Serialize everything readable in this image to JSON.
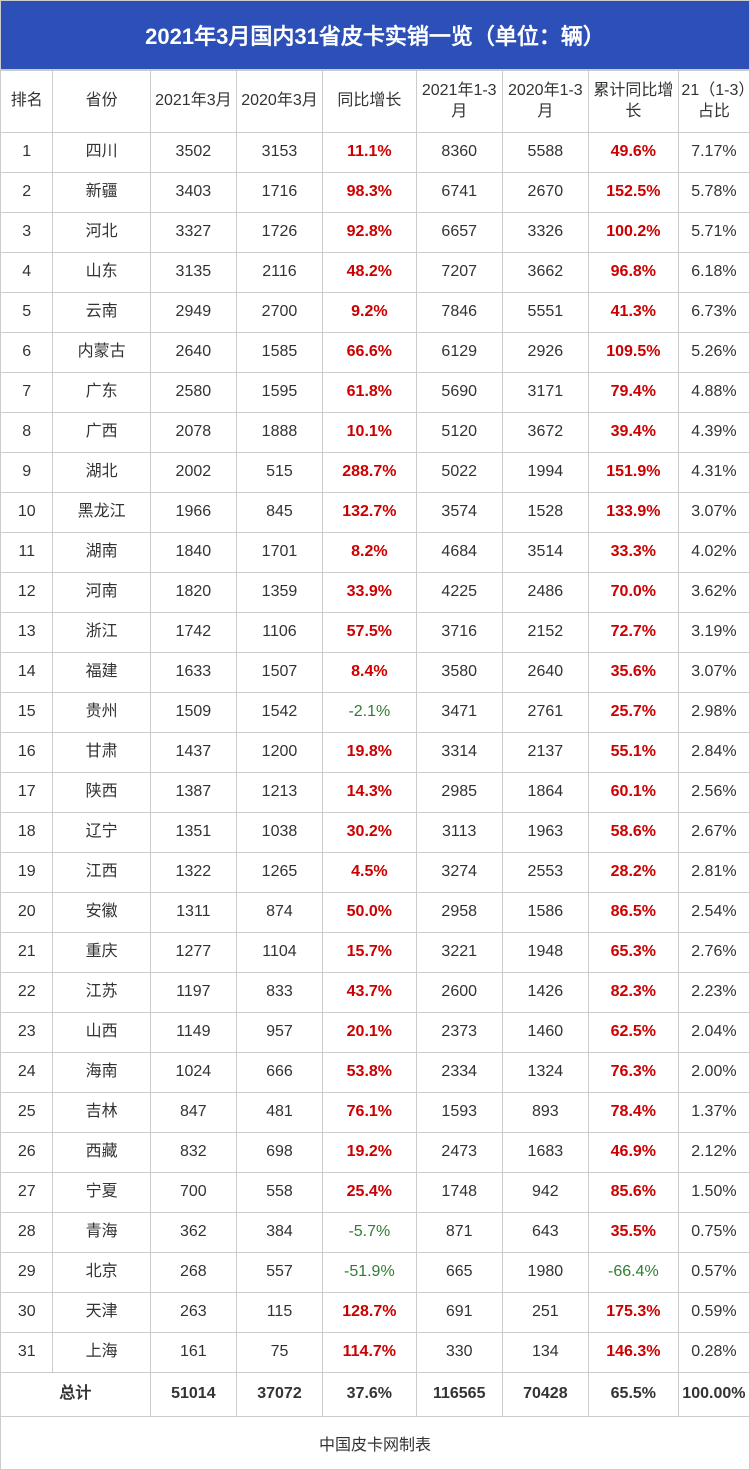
{
  "title": "2021年3月国内31省皮卡实销一览（单位：辆）",
  "footer": "中国皮卡网制表",
  "colors": {
    "header_bg": "#2c4fb8",
    "header_text": "#ffffff",
    "border": "#cccccc",
    "positive": "#cc0000",
    "negative": "#2e7d32",
    "text": "#333333"
  },
  "columns": [
    "排名",
    "省份",
    "2021年3月",
    "2020年3月",
    "同比增长",
    "2021年1-3月",
    "2020年1-3月",
    "累计同比增长",
    "21（1-3）占比"
  ],
  "rows": [
    {
      "rank": "1",
      "prov": "四川",
      "m21": "3502",
      "m20": "3153",
      "yoy": "11.1%",
      "yoy_sign": 1,
      "c21": "8360",
      "c20": "5588",
      "cum": "49.6%",
      "cum_sign": 1,
      "share": "7.17%"
    },
    {
      "rank": "2",
      "prov": "新疆",
      "m21": "3403",
      "m20": "1716",
      "yoy": "98.3%",
      "yoy_sign": 1,
      "c21": "6741",
      "c20": "2670",
      "cum": "152.5%",
      "cum_sign": 1,
      "share": "5.78%"
    },
    {
      "rank": "3",
      "prov": "河北",
      "m21": "3327",
      "m20": "1726",
      "yoy": "92.8%",
      "yoy_sign": 1,
      "c21": "6657",
      "c20": "3326",
      "cum": "100.2%",
      "cum_sign": 1,
      "share": "5.71%"
    },
    {
      "rank": "4",
      "prov": "山东",
      "m21": "3135",
      "m20": "2116",
      "yoy": "48.2%",
      "yoy_sign": 1,
      "c21": "7207",
      "c20": "3662",
      "cum": "96.8%",
      "cum_sign": 1,
      "share": "6.18%"
    },
    {
      "rank": "5",
      "prov": "云南",
      "m21": "2949",
      "m20": "2700",
      "yoy": "9.2%",
      "yoy_sign": 1,
      "c21": "7846",
      "c20": "5551",
      "cum": "41.3%",
      "cum_sign": 1,
      "share": "6.73%"
    },
    {
      "rank": "6",
      "prov": "内蒙古",
      "m21": "2640",
      "m20": "1585",
      "yoy": "66.6%",
      "yoy_sign": 1,
      "c21": "6129",
      "c20": "2926",
      "cum": "109.5%",
      "cum_sign": 1,
      "share": "5.26%"
    },
    {
      "rank": "7",
      "prov": "广东",
      "m21": "2580",
      "m20": "1595",
      "yoy": "61.8%",
      "yoy_sign": 1,
      "c21": "5690",
      "c20": "3171",
      "cum": "79.4%",
      "cum_sign": 1,
      "share": "4.88%"
    },
    {
      "rank": "8",
      "prov": "广西",
      "m21": "2078",
      "m20": "1888",
      "yoy": "10.1%",
      "yoy_sign": 1,
      "c21": "5120",
      "c20": "3672",
      "cum": "39.4%",
      "cum_sign": 1,
      "share": "4.39%"
    },
    {
      "rank": "9",
      "prov": "湖北",
      "m21": "2002",
      "m20": "515",
      "yoy": "288.7%",
      "yoy_sign": 1,
      "c21": "5022",
      "c20": "1994",
      "cum": "151.9%",
      "cum_sign": 1,
      "share": "4.31%"
    },
    {
      "rank": "10",
      "prov": "黑龙江",
      "m21": "1966",
      "m20": "845",
      "yoy": "132.7%",
      "yoy_sign": 1,
      "c21": "3574",
      "c20": "1528",
      "cum": "133.9%",
      "cum_sign": 1,
      "share": "3.07%"
    },
    {
      "rank": "11",
      "prov": "湖南",
      "m21": "1840",
      "m20": "1701",
      "yoy": "8.2%",
      "yoy_sign": 1,
      "c21": "4684",
      "c20": "3514",
      "cum": "33.3%",
      "cum_sign": 1,
      "share": "4.02%"
    },
    {
      "rank": "12",
      "prov": "河南",
      "m21": "1820",
      "m20": "1359",
      "yoy": "33.9%",
      "yoy_sign": 1,
      "c21": "4225",
      "c20": "2486",
      "cum": "70.0%",
      "cum_sign": 1,
      "share": "3.62%"
    },
    {
      "rank": "13",
      "prov": "浙江",
      "m21": "1742",
      "m20": "1106",
      "yoy": "57.5%",
      "yoy_sign": 1,
      "c21": "3716",
      "c20": "2152",
      "cum": "72.7%",
      "cum_sign": 1,
      "share": "3.19%"
    },
    {
      "rank": "14",
      "prov": "福建",
      "m21": "1633",
      "m20": "1507",
      "yoy": "8.4%",
      "yoy_sign": 1,
      "c21": "3580",
      "c20": "2640",
      "cum": "35.6%",
      "cum_sign": 1,
      "share": "3.07%"
    },
    {
      "rank": "15",
      "prov": "贵州",
      "m21": "1509",
      "m20": "1542",
      "yoy": "-2.1%",
      "yoy_sign": -1,
      "c21": "3471",
      "c20": "2761",
      "cum": "25.7%",
      "cum_sign": 1,
      "share": "2.98%"
    },
    {
      "rank": "16",
      "prov": "甘肃",
      "m21": "1437",
      "m20": "1200",
      "yoy": "19.8%",
      "yoy_sign": 1,
      "c21": "3314",
      "c20": "2137",
      "cum": "55.1%",
      "cum_sign": 1,
      "share": "2.84%"
    },
    {
      "rank": "17",
      "prov": "陕西",
      "m21": "1387",
      "m20": "1213",
      "yoy": "14.3%",
      "yoy_sign": 1,
      "c21": "2985",
      "c20": "1864",
      "cum": "60.1%",
      "cum_sign": 1,
      "share": "2.56%"
    },
    {
      "rank": "18",
      "prov": "辽宁",
      "m21": "1351",
      "m20": "1038",
      "yoy": "30.2%",
      "yoy_sign": 1,
      "c21": "3113",
      "c20": "1963",
      "cum": "58.6%",
      "cum_sign": 1,
      "share": "2.67%"
    },
    {
      "rank": "19",
      "prov": "江西",
      "m21": "1322",
      "m20": "1265",
      "yoy": "4.5%",
      "yoy_sign": 1,
      "c21": "3274",
      "c20": "2553",
      "cum": "28.2%",
      "cum_sign": 1,
      "share": "2.81%"
    },
    {
      "rank": "20",
      "prov": "安徽",
      "m21": "1311",
      "m20": "874",
      "yoy": "50.0%",
      "yoy_sign": 1,
      "c21": "2958",
      "c20": "1586",
      "cum": "86.5%",
      "cum_sign": 1,
      "share": "2.54%"
    },
    {
      "rank": "21",
      "prov": "重庆",
      "m21": "1277",
      "m20": "1104",
      "yoy": "15.7%",
      "yoy_sign": 1,
      "c21": "3221",
      "c20": "1948",
      "cum": "65.3%",
      "cum_sign": 1,
      "share": "2.76%"
    },
    {
      "rank": "22",
      "prov": "江苏",
      "m21": "1197",
      "m20": "833",
      "yoy": "43.7%",
      "yoy_sign": 1,
      "c21": "2600",
      "c20": "1426",
      "cum": "82.3%",
      "cum_sign": 1,
      "share": "2.23%"
    },
    {
      "rank": "23",
      "prov": "山西",
      "m21": "1149",
      "m20": "957",
      "yoy": "20.1%",
      "yoy_sign": 1,
      "c21": "2373",
      "c20": "1460",
      "cum": "62.5%",
      "cum_sign": 1,
      "share": "2.04%"
    },
    {
      "rank": "24",
      "prov": "海南",
      "m21": "1024",
      "m20": "666",
      "yoy": "53.8%",
      "yoy_sign": 1,
      "c21": "2334",
      "c20": "1324",
      "cum": "76.3%",
      "cum_sign": 1,
      "share": "2.00%"
    },
    {
      "rank": "25",
      "prov": "吉林",
      "m21": "847",
      "m20": "481",
      "yoy": "76.1%",
      "yoy_sign": 1,
      "c21": "1593",
      "c20": "893",
      "cum": "78.4%",
      "cum_sign": 1,
      "share": "1.37%"
    },
    {
      "rank": "26",
      "prov": "西藏",
      "m21": "832",
      "m20": "698",
      "yoy": "19.2%",
      "yoy_sign": 1,
      "c21": "2473",
      "c20": "1683",
      "cum": "46.9%",
      "cum_sign": 1,
      "share": "2.12%"
    },
    {
      "rank": "27",
      "prov": "宁夏",
      "m21": "700",
      "m20": "558",
      "yoy": "25.4%",
      "yoy_sign": 1,
      "c21": "1748",
      "c20": "942",
      "cum": "85.6%",
      "cum_sign": 1,
      "share": "1.50%"
    },
    {
      "rank": "28",
      "prov": "青海",
      "m21": "362",
      "m20": "384",
      "yoy": "-5.7%",
      "yoy_sign": -1,
      "c21": "871",
      "c20": "643",
      "cum": "35.5%",
      "cum_sign": 1,
      "share": "0.75%"
    },
    {
      "rank": "29",
      "prov": "北京",
      "m21": "268",
      "m20": "557",
      "yoy": "-51.9%",
      "yoy_sign": -1,
      "c21": "665",
      "c20": "1980",
      "cum": "-66.4%",
      "cum_sign": -1,
      "share": "0.57%"
    },
    {
      "rank": "30",
      "prov": "天津",
      "m21": "263",
      "m20": "115",
      "yoy": "128.7%",
      "yoy_sign": 1,
      "c21": "691",
      "c20": "251",
      "cum": "175.3%",
      "cum_sign": 1,
      "share": "0.59%"
    },
    {
      "rank": "31",
      "prov": "上海",
      "m21": "161",
      "m20": "75",
      "yoy": "114.7%",
      "yoy_sign": 1,
      "c21": "330",
      "c20": "134",
      "cum": "146.3%",
      "cum_sign": 1,
      "share": "0.28%"
    }
  ],
  "total": {
    "label": "总计",
    "m21": "51014",
    "m20": "37072",
    "yoy": "37.6%",
    "c21": "116565",
    "c20": "70428",
    "cum": "65.5%",
    "share": "100.00%"
  }
}
